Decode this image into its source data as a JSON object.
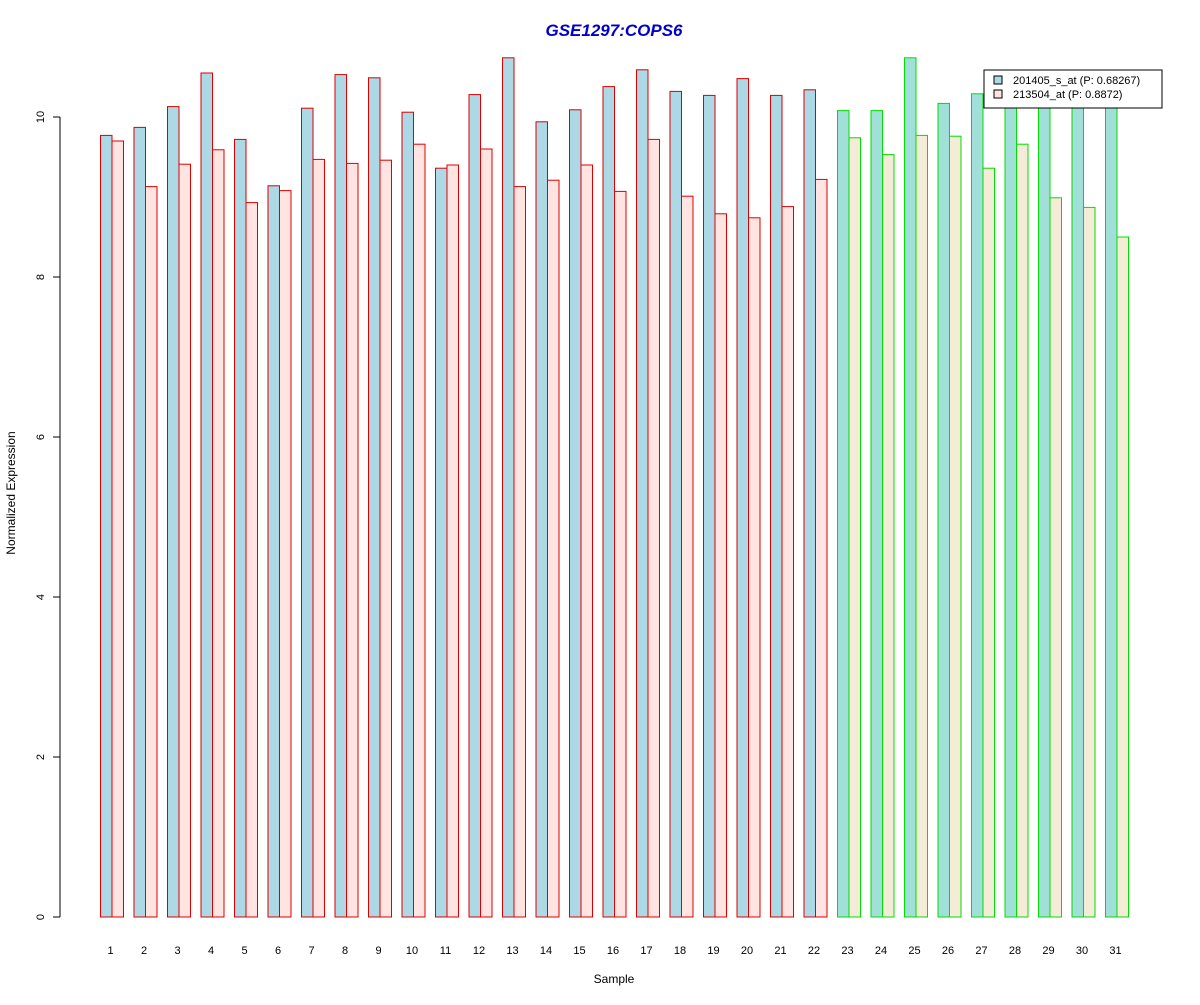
{
  "chart_data": {
    "type": "bar",
    "title": "GSE1297:COPS6",
    "xlabel": "Sample",
    "ylabel": "Normalized Expression",
    "ylim": [
      0,
      11
    ],
    "yticks": [
      0,
      2,
      4,
      6,
      8,
      10
    ],
    "grid": false,
    "legend_position": "top-right",
    "categories": [
      "1",
      "2",
      "3",
      "4",
      "5",
      "6",
      "7",
      "8",
      "9",
      "10",
      "11",
      "12",
      "13",
      "14",
      "15",
      "16",
      "17",
      "18",
      "19",
      "20",
      "21",
      "22",
      "23",
      "24",
      "25",
      "26",
      "27",
      "28",
      "29",
      "30",
      "31"
    ],
    "group_boundary_after_index": 22,
    "group_colors": {
      "group1": {
        "border": "#dd0000",
        "series1_fill": "#add8e6",
        "series2_fill": "#ffe4e1"
      },
      "group2": {
        "border": "#00dd00",
        "series1_fill": "#a0e0d8",
        "series2_fill": "#f5ecd8"
      }
    },
    "series": [
      {
        "name": "201405_s_at (P: 0.68267)",
        "legend_fill": "#add8e6",
        "values": [
          9.77,
          9.87,
          10.13,
          10.55,
          9.72,
          9.14,
          10.11,
          10.53,
          10.49,
          10.06,
          9.36,
          10.28,
          10.74,
          9.94,
          10.09,
          10.38,
          10.59,
          10.32,
          10.27,
          10.48,
          10.27,
          10.34,
          10.08,
          10.08,
          10.74,
          10.17,
          10.29,
          10.15,
          10.13,
          10.14,
          10.12
        ]
      },
      {
        "name": "213504_at (P: 0.8872)",
        "legend_fill": "#ffe4e1",
        "values": [
          9.7,
          9.13,
          9.41,
          9.59,
          8.93,
          9.08,
          9.47,
          9.42,
          9.46,
          9.66,
          9.4,
          9.6,
          9.13,
          9.21,
          9.4,
          9.07,
          9.72,
          9.01,
          8.79,
          8.74,
          8.88,
          9.22,
          9.74,
          9.53,
          9.77,
          9.76,
          9.36,
          9.66,
          8.99,
          8.87,
          8.5
        ]
      }
    ]
  }
}
